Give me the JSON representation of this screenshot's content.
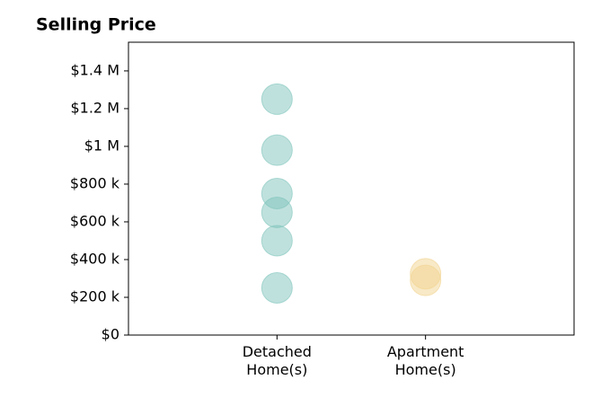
{
  "chart_data": {
    "type": "strip",
    "title": "Selling Price",
    "categories": [
      "Detached\nHome(s)",
      "Apartment\nHome(s)"
    ],
    "series": [
      {
        "color": "#7fc4bc",
        "values": [
          1250000,
          980000,
          750000,
          650000,
          500000,
          250000
        ]
      },
      {
        "color": "#f2d38f",
        "values": [
          325000,
          290000
        ]
      }
    ],
    "ylim": [
      0,
      1552000
    ],
    "yticks": [
      {
        "value": 0,
        "label": "$0"
      },
      {
        "value": 200000,
        "label": "$200 k"
      },
      {
        "value": 400000,
        "label": "$400 k"
      },
      {
        "value": 600000,
        "label": "$600 k"
      },
      {
        "value": 800000,
        "label": "$800 k"
      },
      {
        "value": 1000000,
        "label": "$1 M"
      },
      {
        "value": 1200000,
        "label": "$1.2 M"
      },
      {
        "value": 1400000,
        "label": "$1.4 M"
      }
    ]
  }
}
